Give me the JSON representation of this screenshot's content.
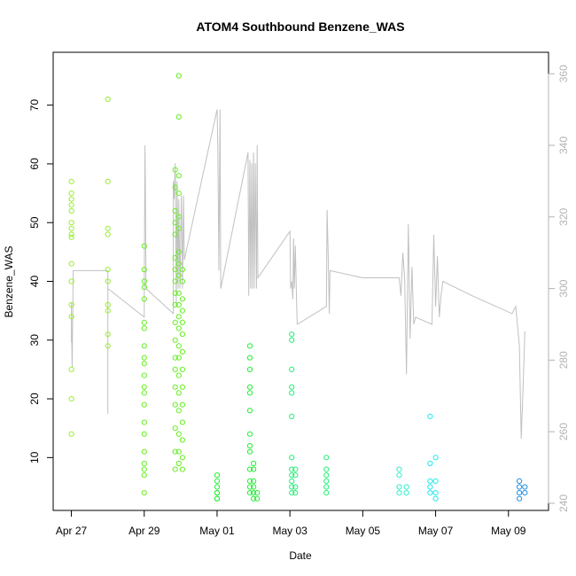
{
  "chart_data": {
    "type": "scatter",
    "title": "ATOM4 Southbound Benzene_WAS",
    "xlabel": "Date",
    "ylabel": "Benzene_WAS",
    "x_ticks": [
      "Apr 27",
      "Apr 29",
      "May 01",
      "May 03",
      "May 05",
      "May 07",
      "May 09"
    ],
    "x_tick_values": [
      0,
      2,
      4,
      6,
      8,
      10,
      12
    ],
    "xlim": [
      -0.5,
      13.1
    ],
    "ylim": [
      1,
      79
    ],
    "y_ticks": [
      10,
      20,
      30,
      40,
      50,
      60,
      70
    ],
    "secondary_ylim": [
      238,
      366
    ],
    "secondary_y_ticks": [
      240,
      260,
      280,
      300,
      320,
      340,
      360
    ],
    "grid": false,
    "legend": "none",
    "point_groups": [
      {
        "color": "#99ee33",
        "points": [
          [
            0.0,
            57
          ],
          [
            0.0,
            55
          ],
          [
            0.0,
            54
          ],
          [
            0.0,
            53
          ],
          [
            0.0,
            52
          ],
          [
            0.0,
            50
          ],
          [
            0.0,
            49
          ],
          [
            0.0,
            48
          ],
          [
            0.0,
            47.5
          ],
          [
            0.0,
            43
          ],
          [
            0.0,
            40
          ],
          [
            0.0,
            36
          ],
          [
            0.0,
            34
          ],
          [
            0.0,
            25
          ],
          [
            0.0,
            20
          ],
          [
            0.0,
            14
          ],
          [
            1.0,
            71
          ],
          [
            1.0,
            57
          ],
          [
            1.0,
            49
          ],
          [
            1.0,
            48
          ],
          [
            1.0,
            42
          ],
          [
            1.0,
            40
          ],
          [
            1.0,
            36
          ],
          [
            1.0,
            35
          ],
          [
            1.0,
            31
          ],
          [
            1.0,
            29
          ]
        ]
      },
      {
        "color": "#66ee22",
        "points": [
          [
            2.0,
            46
          ],
          [
            2.0,
            42
          ],
          [
            2.0,
            40
          ],
          [
            2.0,
            39
          ],
          [
            2.0,
            37
          ],
          [
            2.0,
            33
          ],
          [
            2.0,
            32
          ],
          [
            2.0,
            29
          ],
          [
            2.0,
            27
          ],
          [
            2.0,
            26
          ],
          [
            2.0,
            24
          ],
          [
            2.0,
            22
          ],
          [
            2.0,
            21
          ],
          [
            2.0,
            19
          ],
          [
            2.0,
            16
          ],
          [
            2.0,
            14
          ],
          [
            2.0,
            11
          ],
          [
            2.0,
            9
          ],
          [
            2.0,
            8
          ],
          [
            2.0,
            7
          ],
          [
            2.0,
            4
          ],
          [
            2.85,
            59
          ],
          [
            2.85,
            56
          ],
          [
            2.85,
            52
          ],
          [
            2.85,
            50
          ],
          [
            2.85,
            48
          ],
          [
            2.85,
            44
          ],
          [
            2.85,
            42
          ],
          [
            2.85,
            40
          ],
          [
            2.85,
            38
          ],
          [
            2.85,
            36
          ],
          [
            2.85,
            33
          ],
          [
            2.85,
            30
          ],
          [
            2.85,
            27
          ],
          [
            2.85,
            25
          ],
          [
            2.85,
            22
          ],
          [
            2.85,
            19
          ],
          [
            2.85,
            15
          ],
          [
            2.85,
            11
          ],
          [
            2.85,
            8
          ],
          [
            2.95,
            75
          ],
          [
            2.95,
            68
          ],
          [
            2.95,
            58
          ],
          [
            2.95,
            55
          ],
          [
            2.95,
            51
          ],
          [
            2.95,
            49
          ],
          [
            2.95,
            45
          ],
          [
            2.95,
            43
          ],
          [
            2.95,
            41
          ],
          [
            2.95,
            38
          ],
          [
            2.95,
            36
          ],
          [
            2.95,
            34
          ],
          [
            2.95,
            32
          ],
          [
            2.95,
            29
          ],
          [
            2.95,
            27
          ],
          [
            2.95,
            24
          ],
          [
            2.95,
            21
          ],
          [
            2.95,
            18
          ],
          [
            2.95,
            14
          ],
          [
            2.95,
            11
          ],
          [
            2.95,
            9
          ],
          [
            3.05,
            42
          ],
          [
            3.05,
            40
          ],
          [
            3.05,
            37
          ],
          [
            3.05,
            35
          ],
          [
            3.05,
            33
          ],
          [
            3.05,
            31
          ],
          [
            3.05,
            28
          ],
          [
            3.05,
            25
          ],
          [
            3.05,
            22
          ],
          [
            3.05,
            19
          ],
          [
            3.05,
            16
          ],
          [
            3.05,
            13
          ],
          [
            3.05,
            10
          ],
          [
            3.05,
            8
          ]
        ]
      },
      {
        "color": "#22ee33",
        "points": [
          [
            4.0,
            7
          ],
          [
            4.0,
            6
          ],
          [
            4.0,
            5
          ],
          [
            4.0,
            4
          ],
          [
            4.0,
            4
          ],
          [
            4.0,
            3
          ],
          [
            4.0,
            3
          ],
          [
            4.9,
            29
          ],
          [
            4.9,
            27
          ],
          [
            4.9,
            25
          ],
          [
            4.9,
            22
          ],
          [
            4.9,
            21
          ],
          [
            4.9,
            18
          ],
          [
            4.9,
            14
          ],
          [
            4.9,
            12
          ],
          [
            4.9,
            11
          ],
          [
            4.9,
            8
          ],
          [
            4.9,
            6
          ],
          [
            4.9,
            5
          ],
          [
            4.9,
            4
          ],
          [
            5.0,
            9
          ],
          [
            5.0,
            8
          ],
          [
            5.0,
            6
          ],
          [
            5.0,
            5
          ],
          [
            5.0,
            4
          ],
          [
            5.0,
            3
          ],
          [
            5.1,
            4
          ],
          [
            5.1,
            3
          ]
        ]
      },
      {
        "color": "#22ee77",
        "points": [
          [
            6.05,
            31
          ],
          [
            6.05,
            30
          ],
          [
            6.05,
            25
          ],
          [
            6.05,
            22
          ],
          [
            6.05,
            21
          ],
          [
            6.05,
            17
          ],
          [
            6.05,
            10
          ],
          [
            6.05,
            8
          ],
          [
            6.05,
            7
          ],
          [
            6.05,
            6
          ],
          [
            6.05,
            5
          ],
          [
            6.05,
            4
          ],
          [
            6.15,
            8
          ],
          [
            6.15,
            7
          ],
          [
            6.15,
            5
          ],
          [
            6.15,
            4
          ],
          [
            7.0,
            10
          ],
          [
            7.0,
            8
          ],
          [
            7.0,
            7
          ],
          [
            7.0,
            6
          ],
          [
            7.0,
            5
          ],
          [
            7.0,
            4
          ]
        ]
      },
      {
        "color": "#33eecc",
        "points": [
          [
            9.0,
            8
          ],
          [
            9.0,
            7
          ],
          [
            9.0,
            5
          ],
          [
            9.0,
            4
          ],
          [
            9.2,
            5
          ],
          [
            9.2,
            4
          ]
        ]
      },
      {
        "color": "#22e8ee",
        "points": [
          [
            9.85,
            17
          ],
          [
            9.85,
            9
          ],
          [
            9.85,
            6
          ],
          [
            9.85,
            5
          ],
          [
            9.85,
            4
          ],
          [
            10.0,
            10
          ],
          [
            10.0,
            6
          ],
          [
            10.0,
            4
          ],
          [
            10.0,
            3
          ]
        ]
      },
      {
        "color": "#2090e0",
        "points": [
          [
            12.3,
            6
          ],
          [
            12.3,
            5
          ],
          [
            12.3,
            4
          ],
          [
            12.3,
            3
          ],
          [
            12.45,
            5
          ],
          [
            12.45,
            4
          ]
        ]
      }
    ],
    "secondary_line": {
      "color": "#c0c0c0",
      "points": [
        [
          0.0,
          292
        ],
        [
          0.0,
          296
        ],
        [
          0.0,
          285
        ],
        [
          0.0,
          292
        ],
        [
          0.02,
          278
        ],
        [
          0.05,
          305
        ],
        [
          1.0,
          305
        ],
        [
          1.0,
          292
        ],
        [
          1.0,
          265
        ],
        [
          1.0,
          300
        ],
        [
          2.0,
          292
        ],
        [
          2.0,
          292
        ],
        [
          2.0,
          300
        ],
        [
          2.02,
          340
        ],
        [
          2.03,
          330
        ],
        [
          2.05,
          300
        ],
        [
          2.8,
          293
        ],
        [
          2.8,
          330
        ],
        [
          2.82,
          325
        ],
        [
          2.85,
          335
        ],
        [
          2.88,
          295
        ],
        [
          2.9,
          330
        ],
        [
          2.93,
          300
        ],
        [
          2.95,
          325
        ],
        [
          2.98,
          300
        ],
        [
          3.02,
          326
        ],
        [
          3.05,
          300
        ],
        [
          3.08,
          326
        ],
        [
          3.1,
          308
        ],
        [
          4.0,
          350
        ],
        [
          4.02,
          340
        ],
        [
          4.05,
          305
        ],
        [
          4.08,
          350
        ],
        [
          4.1,
          300
        ],
        [
          4.85,
          338
        ],
        [
          4.87,
          298
        ],
        [
          4.9,
          336
        ],
        [
          4.92,
          300
        ],
        [
          4.95,
          335
        ],
        [
          4.97,
          300
        ],
        [
          5.0,
          338
        ],
        [
          5.02,
          300
        ],
        [
          5.05,
          335
        ],
        [
          5.08,
          300
        ],
        [
          5.1,
          340
        ],
        [
          5.12,
          303
        ],
        [
          6.0,
          316
        ],
        [
          6.02,
          300
        ],
        [
          6.05,
          302
        ],
        [
          6.08,
          297
        ],
        [
          6.1,
          314
        ],
        [
          6.12,
          300
        ],
        [
          6.15,
          312
        ],
        [
          6.18,
          297
        ],
        [
          6.2,
          290
        ],
        [
          7.0,
          295
        ],
        [
          7.02,
          322
        ],
        [
          7.05,
          310
        ],
        [
          7.08,
          293
        ],
        [
          7.1,
          305
        ],
        [
          8.0,
          303
        ],
        [
          9.0,
          303
        ],
        [
          9.05,
          298
        ],
        [
          9.1,
          310
        ],
        [
          9.15,
          303
        ],
        [
          9.2,
          276
        ],
        [
          9.25,
          318
        ],
        [
          9.3,
          286
        ],
        [
          9.35,
          306
        ],
        [
          9.4,
          290
        ],
        [
          9.45,
          292
        ],
        [
          9.9,
          290
        ],
        [
          9.95,
          315
        ],
        [
          10.0,
          295
        ],
        [
          10.05,
          309
        ],
        [
          10.1,
          292
        ],
        [
          10.15,
          298
        ],
        [
          10.2,
          302
        ],
        [
          11.0,
          298
        ],
        [
          12.1,
          293
        ],
        [
          12.2,
          295
        ],
        [
          12.3,
          284
        ],
        [
          12.35,
          258
        ],
        [
          12.4,
          272
        ],
        [
          12.45,
          288
        ]
      ]
    }
  }
}
